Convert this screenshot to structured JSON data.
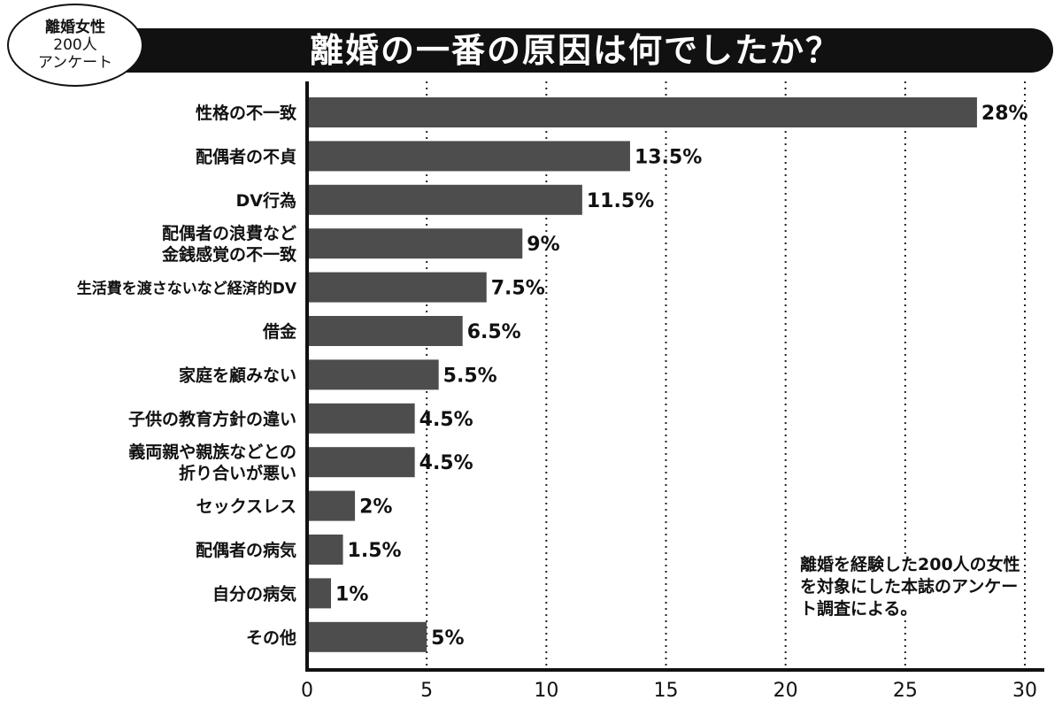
{
  "badge": {
    "line1": "離婚女性",
    "line2": "200人",
    "line3": "アンケート"
  },
  "title": "離婚の一番の原因は何でしたか？",
  "note": "離婚を経験した200人の女性を対象にした本誌のアンケート調査による。",
  "chart_data": {
    "type": "bar",
    "orientation": "horizontal",
    "title": "離婚の一番の原因は何でしたか？",
    "categories": [
      [
        "性格の不一致"
      ],
      [
        "配偶者の不貞"
      ],
      [
        "DV行為"
      ],
      [
        "配偶者の浪費など",
        "金銭感覚の不一致"
      ],
      [
        "生活費を渡さないなど経済的DV"
      ],
      [
        "借金"
      ],
      [
        "家庭を顧みない"
      ],
      [
        "子供の教育方針の違い"
      ],
      [
        "義両親や親族などとの",
        "折り合いが悪い"
      ],
      [
        "セックスレス"
      ],
      [
        "配偶者の病気"
      ],
      [
        "自分の病気"
      ],
      [
        "その他"
      ]
    ],
    "values": [
      28,
      13.5,
      11.5,
      9,
      7.5,
      6.5,
      5.5,
      4.5,
      4.5,
      2,
      1.5,
      1,
      5
    ],
    "data_labels": [
      "28%",
      "13.5%",
      "11.5%",
      "9%",
      "7.5%",
      "6.5%",
      "5.5%",
      "4.5%",
      "4.5%",
      "2%",
      "1.5%",
      "1%",
      "5%"
    ],
    "xlim": [
      0,
      30
    ],
    "xticks": [
      0,
      5,
      10,
      15,
      20,
      25,
      30
    ],
    "grid": "vertical dotted",
    "bar_color": "#4d4d4d"
  }
}
